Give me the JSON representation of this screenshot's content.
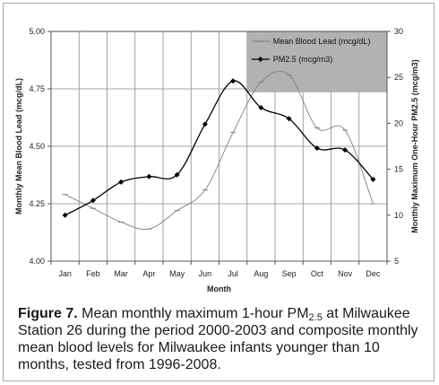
{
  "chart_data": {
    "type": "line",
    "xlabel": "Month",
    "ylabel": "Monthly Mean Blood Lead (mcg/dL)",
    "y2label": "Monthly Maximum One-Hour PM2.5 (mcg/m3)",
    "categories": [
      "Jan",
      "Feb",
      "Mar",
      "Apr",
      "May",
      "Jun",
      "Jul",
      "Aug",
      "Sep",
      "Oct",
      "Nov",
      "Dec"
    ],
    "ylim": [
      4.0,
      5.0
    ],
    "y2lim": [
      5,
      30
    ],
    "yticks": [
      "4.00",
      "4.25",
      "4.50",
      "4.75",
      "5.00"
    ],
    "y2ticks": [
      "5",
      "10",
      "15",
      "20",
      "25",
      "30"
    ],
    "grid": true,
    "legend_position": "top-right",
    "series": [
      {
        "name": "Mean Blood Lead (mcg/dL)",
        "axis": "left",
        "marker": "dash",
        "color": "#808080",
        "values": [
          4.29,
          4.23,
          4.17,
          4.14,
          4.22,
          4.31,
          4.56,
          4.78,
          4.81,
          4.58,
          4.57,
          4.25
        ]
      },
      {
        "name": "PM2.5 (mcg/m3)",
        "axis": "right",
        "marker": "diamond",
        "color": "#000000",
        "values": [
          10.0,
          11.6,
          13.6,
          14.2,
          14.4,
          19.9,
          24.6,
          21.7,
          20.5,
          17.3,
          17.1,
          13.9
        ]
      }
    ],
    "legend_highlight_color": "#b2b2b2"
  },
  "caption": {
    "figure_label": "Figure 7.",
    "text_before_sub": " Mean monthly maximum 1-hour PM",
    "sub": "2.5",
    "text_after_sub": " at Milwaukee Station 26 during the period 2000-2003 and composite monthly mean blood levels for Milwaukee infants younger than 10 months, tested from 1996-2008."
  }
}
